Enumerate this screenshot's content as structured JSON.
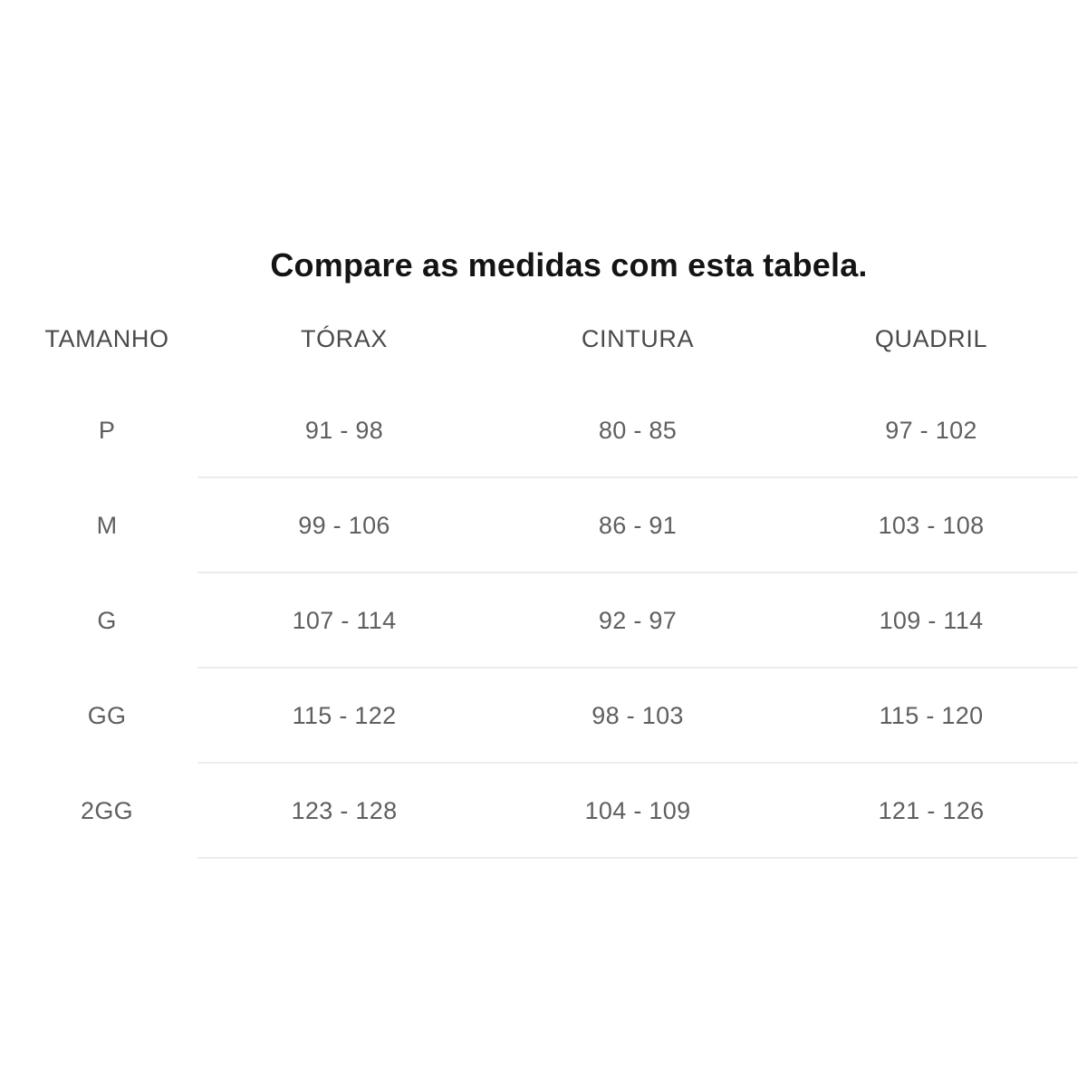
{
  "chart_data": {
    "type": "table",
    "title": "Compare as medidas com esta tabela.",
    "columns": [
      "TAMANHO",
      "TÓRAX",
      "CINTURA",
      "QUADRIL"
    ],
    "rows": [
      [
        "P",
        "91 - 98",
        "80 - 85",
        "97 - 102"
      ],
      [
        "M",
        "99 - 106",
        "86 - 91",
        "103 - 108"
      ],
      [
        "G",
        "107 - 114",
        "92 - 97",
        "109 - 114"
      ],
      [
        "GG",
        "115 - 122",
        "98 - 103",
        "115 - 120"
      ],
      [
        "2GG",
        "123 - 128",
        "104 - 109",
        "121 - 126"
      ]
    ],
    "layout": {
      "grid": "horizontal dividers under each data row only, spanning measurement columns",
      "legend": "none"
    }
  },
  "colors": {
    "background": "#ffffff",
    "title_text": "#141414",
    "header_text": "#4a4a4a",
    "cell_text": "#5f5f5f",
    "divider": "#ebebeb"
  }
}
